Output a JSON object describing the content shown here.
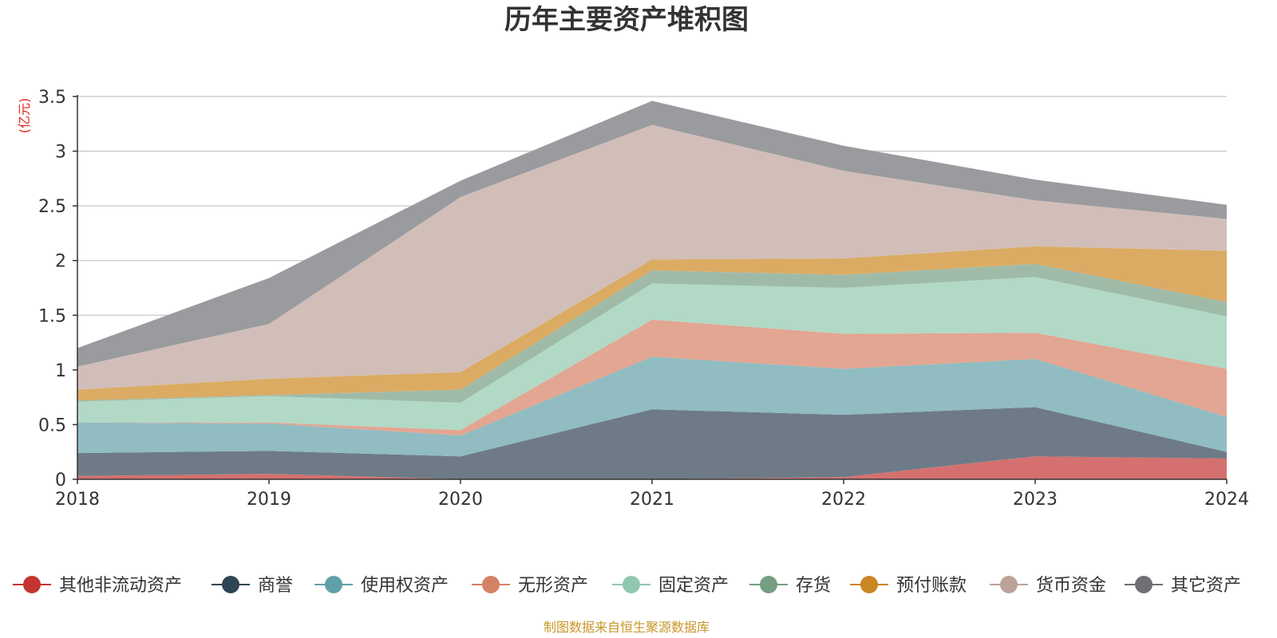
{
  "chart_data": {
    "type": "area",
    "stacked": true,
    "title": "历年主要资产堆积图",
    "unit_label": "(亿元)",
    "categories": [
      "2018",
      "2019",
      "2020",
      "2021",
      "2022",
      "2023",
      "2024"
    ],
    "ylim": [
      0,
      3.5
    ],
    "yticks": [
      0,
      0.5,
      1,
      1.5,
      2,
      2.5,
      3,
      3.5
    ],
    "ytick_labels": [
      "0",
      "0.5",
      "1",
      "1.5",
      "2",
      "2.5",
      "3",
      "3.5"
    ],
    "grid": true,
    "legend_position": "bottom",
    "series": [
      {
        "name": "其他非流动资产",
        "color": "#c23531",
        "fill": "#d57070",
        "values": [
          0.03,
          0.05,
          0.0,
          0.0,
          0.02,
          0.21,
          0.19
        ]
      },
      {
        "name": "商誉",
        "color": "#2f4554",
        "fill": "#6e7b86",
        "values": [
          0.21,
          0.21,
          0.21,
          0.64,
          0.57,
          0.45,
          0.06
        ]
      },
      {
        "name": "使用权资产",
        "color": "#61a0a8",
        "fill": "#90bcc2",
        "values": [
          0.28,
          0.25,
          0.19,
          0.48,
          0.42,
          0.44,
          0.32
        ]
      },
      {
        "name": "无形资产",
        "color": "#d48265",
        "fill": "#e2a692",
        "values": [
          0.0,
          0.01,
          0.05,
          0.34,
          0.32,
          0.24,
          0.44
        ]
      },
      {
        "name": "固定资产",
        "color": "#91c7ae",
        "fill": "#b1d9c6",
        "values": [
          0.19,
          0.24,
          0.25,
          0.33,
          0.42,
          0.51,
          0.48
        ]
      },
      {
        "name": "存货",
        "color": "#749f83",
        "fill": "#9fbba8",
        "values": [
          0.01,
          0.01,
          0.12,
          0.12,
          0.12,
          0.12,
          0.13
        ]
      },
      {
        "name": "预付账款",
        "color": "#ca8622",
        "fill": "#dbab63",
        "values": [
          0.1,
          0.15,
          0.16,
          0.1,
          0.15,
          0.16,
          0.47
        ]
      },
      {
        "name": "货币资金",
        "color": "#bda29a",
        "fill": "#d1beb8",
        "values": [
          0.21,
          0.5,
          1.6,
          1.23,
          0.8,
          0.42,
          0.29
        ]
      },
      {
        "name": "其它资产",
        "color": "#6e7074",
        "fill": "#9a9b9e",
        "values": [
          0.17,
          0.42,
          0.15,
          0.22,
          0.23,
          0.19,
          0.13
        ]
      }
    ]
  },
  "footer": {
    "source": "制图数据来自恒生聚源数据库"
  }
}
